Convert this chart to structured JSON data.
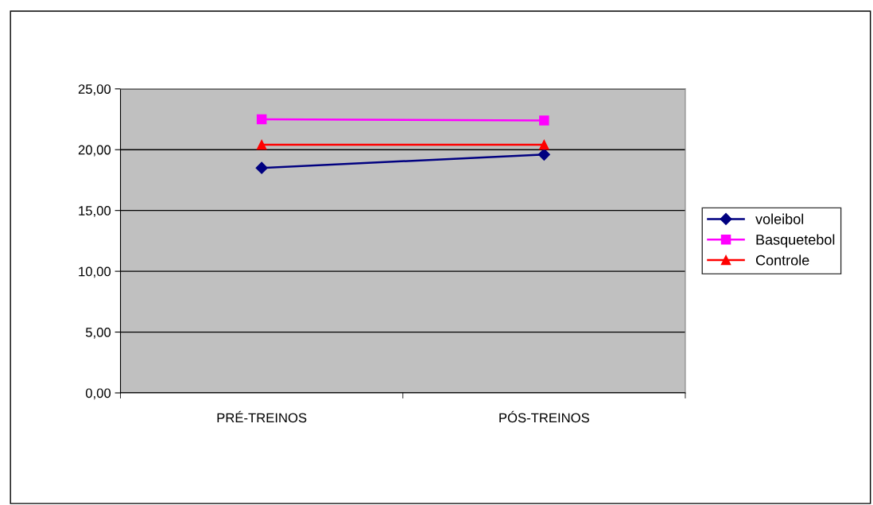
{
  "chart_data": {
    "type": "line",
    "categories": [
      "PRÉ-TREINOS",
      "PÓS-TREINOS"
    ],
    "series": [
      {
        "name": "voleibol",
        "color": "#000080",
        "marker": "diamond",
        "values": [
          18.5,
          19.6
        ]
      },
      {
        "name": "Basquetebol",
        "color": "#ff00ff",
        "marker": "square",
        "values": [
          22.5,
          22.4
        ]
      },
      {
        "name": "Controle",
        "color": "#ff0000",
        "marker": "triangle",
        "values": [
          20.4,
          20.4
        ]
      }
    ],
    "ylim": [
      0,
      25
    ],
    "yticks": [
      {
        "value": 0,
        "label": "0,00"
      },
      {
        "value": 5,
        "label": "5,00"
      },
      {
        "value": 10,
        "label": "10,00"
      },
      {
        "value": 15,
        "label": "15,00"
      },
      {
        "value": 20,
        "label": "20,00"
      },
      {
        "value": 25,
        "label": "25,00"
      }
    ],
    "grid": "y",
    "legend": "right",
    "line_style": "solid"
  }
}
